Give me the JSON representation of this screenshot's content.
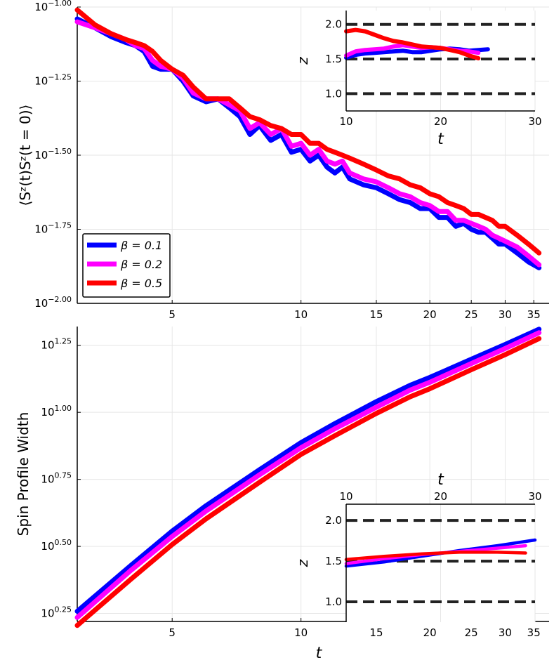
{
  "chart_data": [
    {
      "type": "line",
      "id": "top",
      "xscale": "log",
      "yscale": "log",
      "xlim": [
        3.0,
        38.0
      ],
      "ylim_log10": [
        -2.0,
        -1.0
      ],
      "ylabel": "⟨Sᶻ(t)Sᶻ(t = 0)⟩",
      "xlabel": "",
      "xticks": [
        {
          "v": 5,
          "label": "5"
        },
        {
          "v": 10,
          "label": "10"
        },
        {
          "v": 15,
          "label": "15"
        },
        {
          "v": 20,
          "label": "20"
        },
        {
          "v": 25,
          "label": "25"
        },
        {
          "v": 30,
          "label": "30"
        },
        {
          "v": 35,
          "label": "35"
        }
      ],
      "yticks": [
        {
          "v": -2.0,
          "base": "10",
          "exp": "−2.00"
        },
        {
          "v": -1.75,
          "base": "10",
          "exp": "−1.75"
        },
        {
          "v": -1.5,
          "base": "10",
          "exp": "−1.50"
        },
        {
          "v": -1.25,
          "base": "10",
          "exp": "−1.25"
        },
        {
          "v": -1.0,
          "base": "10",
          "exp": "−1.00"
        }
      ],
      "legend": {
        "position": "bottom-left",
        "entries": [
          "β = 0.1",
          "β = 0.2",
          "β = 0.5"
        ]
      },
      "series": [
        {
          "name": "β = 0.1",
          "color": "#0000ff",
          "x": [
            3.0,
            3.3,
            3.6,
            3.9,
            4.1,
            4.3,
            4.5,
            4.7,
            5.0,
            5.3,
            5.6,
            6.0,
            6.4,
            6.8,
            7.2,
            7.6,
            8.0,
            8.5,
            9.0,
            9.5,
            10.0,
            10.5,
            11.0,
            11.5,
            12.0,
            12.5,
            13.0,
            14.0,
            15.0,
            16.0,
            17.0,
            18.0,
            19.0,
            20.0,
            21.0,
            22.0,
            23.0,
            24.0,
            25.0,
            26.0,
            27.0,
            28.0,
            29.0,
            30.0,
            32.0,
            34.0,
            36.0
          ],
          "y": [
            -1.04,
            -1.07,
            -1.1,
            -1.12,
            -1.13,
            -1.15,
            -1.2,
            -1.21,
            -1.21,
            -1.25,
            -1.3,
            -1.32,
            -1.31,
            -1.34,
            -1.37,
            -1.43,
            -1.4,
            -1.45,
            -1.43,
            -1.49,
            -1.48,
            -1.52,
            -1.5,
            -1.54,
            -1.56,
            -1.54,
            -1.58,
            -1.6,
            -1.61,
            -1.63,
            -1.65,
            -1.66,
            -1.68,
            -1.68,
            -1.71,
            -1.71,
            -1.74,
            -1.73,
            -1.75,
            -1.76,
            -1.76,
            -1.78,
            -1.8,
            -1.8,
            -1.83,
            -1.86,
            -1.88
          ]
        },
        {
          "name": "β = 0.2",
          "color": "#ff00ff",
          "x": [
            3.0,
            3.3,
            3.6,
            3.9,
            4.1,
            4.3,
            4.5,
            4.7,
            5.0,
            5.3,
            5.6,
            6.0,
            6.4,
            6.8,
            7.2,
            7.6,
            8.0,
            8.5,
            9.0,
            9.5,
            10.0,
            10.5,
            11.0,
            11.5,
            12.0,
            12.5,
            13.0,
            14.0,
            15.0,
            16.0,
            17.0,
            18.0,
            19.0,
            20.0,
            21.0,
            22.0,
            23.0,
            24.0,
            25.0,
            26.0,
            27.0,
            28.0,
            29.0,
            30.0,
            32.0,
            34.0,
            36.0
          ],
          "y": [
            -1.05,
            -1.07,
            -1.09,
            -1.11,
            -1.13,
            -1.14,
            -1.18,
            -1.2,
            -1.21,
            -1.24,
            -1.29,
            -1.31,
            -1.31,
            -1.33,
            -1.35,
            -1.41,
            -1.39,
            -1.43,
            -1.41,
            -1.47,
            -1.46,
            -1.5,
            -1.48,
            -1.52,
            -1.53,
            -1.52,
            -1.56,
            -1.58,
            -1.59,
            -1.61,
            -1.63,
            -1.64,
            -1.66,
            -1.67,
            -1.69,
            -1.69,
            -1.72,
            -1.72,
            -1.73,
            -1.74,
            -1.75,
            -1.77,
            -1.78,
            -1.79,
            -1.81,
            -1.84,
            -1.87
          ]
        },
        {
          "name": "β = 0.5",
          "color": "#ff0000",
          "x": [
            3.0,
            3.3,
            3.6,
            3.9,
            4.1,
            4.3,
            4.5,
            4.7,
            5.0,
            5.3,
            5.6,
            6.0,
            6.4,
            6.8,
            7.2,
            7.6,
            8.0,
            8.5,
            9.0,
            9.5,
            10.0,
            10.5,
            11.0,
            11.5,
            12.0,
            12.5,
            13.0,
            14.0,
            15.0,
            16.0,
            17.0,
            18.0,
            19.0,
            20.0,
            21.0,
            22.0,
            23.0,
            24.0,
            25.0,
            26.0,
            27.0,
            28.0,
            29.0,
            30.0,
            32.0,
            34.0,
            36.0
          ],
          "y": [
            -1.01,
            -1.06,
            -1.09,
            -1.11,
            -1.12,
            -1.13,
            -1.15,
            -1.18,
            -1.21,
            -1.23,
            -1.27,
            -1.31,
            -1.31,
            -1.31,
            -1.34,
            -1.37,
            -1.38,
            -1.4,
            -1.41,
            -1.43,
            -1.43,
            -1.46,
            -1.46,
            -1.48,
            -1.49,
            -1.5,
            -1.51,
            -1.53,
            -1.55,
            -1.57,
            -1.58,
            -1.6,
            -1.61,
            -1.63,
            -1.64,
            -1.66,
            -1.67,
            -1.68,
            -1.7,
            -1.7,
            -1.71,
            -1.72,
            -1.74,
            -1.74,
            -1.77,
            -1.8,
            -1.83
          ]
        }
      ],
      "inset": {
        "xlim": [
          10,
          30
        ],
        "ylim": [
          0.75,
          2.2
        ],
        "xlabel": "t",
        "ylabel": "z",
        "xaxis_position": "bottom",
        "xticks": [
          10,
          20,
          30
        ],
        "yticks": [
          {
            "v": 1.0,
            "label": "1.0"
          },
          {
            "v": 1.5,
            "label": "1.5"
          },
          {
            "v": 2.0,
            "label": "2.0"
          }
        ],
        "hlines": [
          1.0,
          1.5,
          2.0
        ],
        "series": [
          {
            "name": "β = 0.1",
            "color": "#0000ff",
            "x": [
              10,
              11,
              12,
              13,
              14,
              15,
              16,
              17,
              18,
              19,
              20,
              21,
              22,
              23,
              24,
              25
            ],
            "y": [
              1.52,
              1.56,
              1.58,
              1.59,
              1.6,
              1.61,
              1.62,
              1.6,
              1.6,
              1.62,
              1.64,
              1.65,
              1.64,
              1.62,
              1.63,
              1.64
            ]
          },
          {
            "name": "β = 0.2",
            "color": "#ff00ff",
            "x": [
              10,
              11,
              12,
              13,
              14,
              15,
              16,
              17,
              18,
              19,
              20,
              21,
              22,
              23,
              24
            ],
            "y": [
              1.55,
              1.61,
              1.63,
              1.64,
              1.65,
              1.68,
              1.7,
              1.68,
              1.66,
              1.67,
              1.66,
              1.64,
              1.62,
              1.61,
              1.59
            ]
          },
          {
            "name": "β = 0.5",
            "color": "#ff0000",
            "x": [
              10,
              11,
              12,
              13,
              14,
              15,
              16,
              17,
              18,
              19,
              20,
              21,
              22,
              23,
              24
            ],
            "y": [
              1.9,
              1.92,
              1.9,
              1.85,
              1.8,
              1.76,
              1.74,
              1.71,
              1.68,
              1.67,
              1.66,
              1.63,
              1.6,
              1.55,
              1.51
            ]
          }
        ]
      }
    },
    {
      "type": "line",
      "id": "bottom",
      "xscale": "log",
      "yscale": "log",
      "xlim": [
        3.0,
        38.0
      ],
      "ylim_log10": [
        0.22,
        1.32
      ],
      "ylabel": "Spin Profile Width",
      "xlabel": "t",
      "xticks": [
        {
          "v": 5,
          "label": "5"
        },
        {
          "v": 10,
          "label": "10"
        },
        {
          "v": 15,
          "label": "15"
        },
        {
          "v": 20,
          "label": "20"
        },
        {
          "v": 25,
          "label": "25"
        },
        {
          "v": 30,
          "label": "30"
        },
        {
          "v": 35,
          "label": "35"
        }
      ],
      "yticks": [
        {
          "v": 0.25,
          "base": "10",
          "exp": "0.25"
        },
        {
          "v": 0.5,
          "base": "10",
          "exp": "0.50"
        },
        {
          "v": 0.75,
          "base": "10",
          "exp": "0.75"
        },
        {
          "v": 1.0,
          "base": "10",
          "exp": "1.00"
        },
        {
          "v": 1.25,
          "base": "10",
          "exp": "1.25"
        }
      ],
      "series": [
        {
          "name": "β = 0.1",
          "color": "#0000ff",
          "x": [
            3.0,
            4.0,
            5.0,
            6.0,
            8.0,
            10.0,
            12.0,
            15.0,
            18.0,
            20.0,
            25.0,
            30.0,
            36.0
          ],
          "y": [
            0.258,
            0.428,
            0.557,
            0.652,
            0.786,
            0.887,
            0.958,
            1.04,
            1.101,
            1.13,
            1.198,
            1.253,
            1.31
          ]
        },
        {
          "name": "β = 0.2",
          "color": "#ff00ff",
          "x": [
            3.0,
            4.0,
            5.0,
            6.0,
            8.0,
            10.0,
            12.0,
            15.0,
            18.0,
            20.0,
            25.0,
            30.0,
            36.0
          ],
          "y": [
            0.235,
            0.41,
            0.537,
            0.632,
            0.767,
            0.868,
            0.939,
            1.019,
            1.083,
            1.112,
            1.182,
            1.238,
            1.297
          ]
        },
        {
          "name": "β = 0.5",
          "color": "#ff0000",
          "x": [
            3.0,
            4.0,
            5.0,
            6.0,
            8.0,
            10.0,
            12.0,
            15.0,
            18.0,
            20.0,
            25.0,
            30.0,
            36.0
          ],
          "y": [
            0.205,
            0.377,
            0.507,
            0.603,
            0.739,
            0.843,
            0.913,
            0.996,
            1.058,
            1.088,
            1.159,
            1.215,
            1.275
          ]
        }
      ],
      "inset": {
        "xlim": [
          10,
          30
        ],
        "ylim": [
          0.75,
          2.2
        ],
        "xlabel": "t",
        "ylabel": "z",
        "xaxis_position": "top",
        "xticks": [
          10,
          20,
          30
        ],
        "yticks": [
          {
            "v": 1.0,
            "label": "1.0"
          },
          {
            "v": 1.5,
            "label": "1.5"
          },
          {
            "v": 2.0,
            "label": "2.0"
          }
        ],
        "hlines": [
          1.0,
          1.5,
          2.0
        ],
        "series": [
          {
            "name": "β = 0.1",
            "color": "#0000ff",
            "x": [
              10,
              14,
              18,
              22,
              26,
              30
            ],
            "y": [
              1.44,
              1.49,
              1.56,
              1.63,
              1.69,
              1.76
            ]
          },
          {
            "name": "β = 0.2",
            "color": "#ff00ff",
            "x": [
              10,
              14,
              18,
              22,
              26,
              29
            ],
            "y": [
              1.47,
              1.53,
              1.58,
              1.62,
              1.66,
              1.69
            ]
          },
          {
            "name": "β = 0.5",
            "color": "#ff0000",
            "x": [
              10,
              14,
              18,
              22,
              26,
              29
            ],
            "y": [
              1.52,
              1.56,
              1.59,
              1.61,
              1.61,
              1.6
            ]
          }
        ]
      }
    }
  ]
}
